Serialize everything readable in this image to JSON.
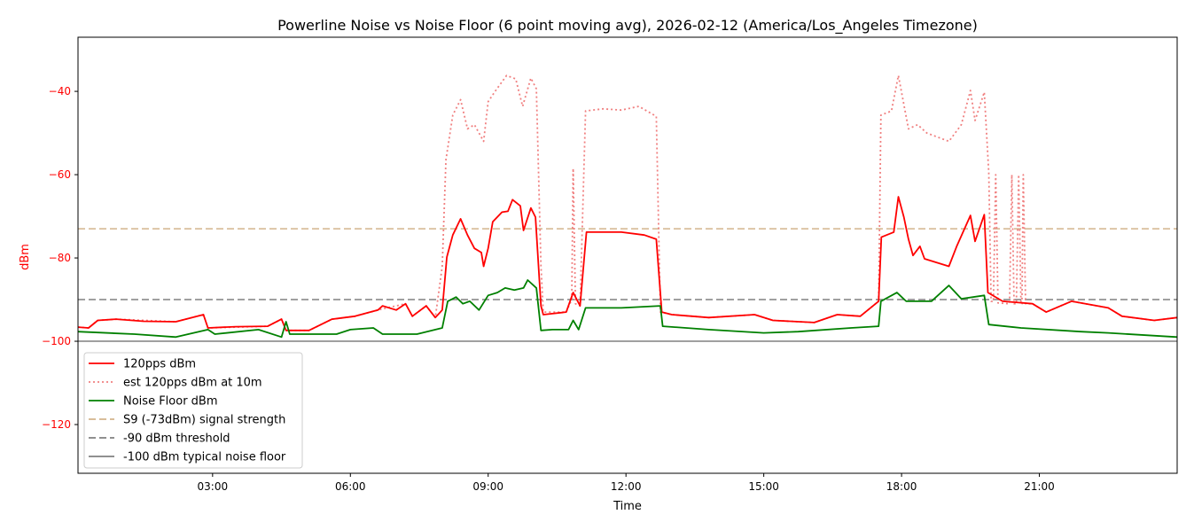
{
  "chart_data": {
    "type": "line",
    "title": "Powerline Noise vs Noise Floor (6 point moving avg), 2026-02-12 (America/Los_Angeles Timezone)",
    "xlabel": "Time",
    "ylabel": "dBm",
    "x_unit": "hours",
    "xlim": [
      0.07,
      24.0
    ],
    "ylim": [
      -131.7,
      -27
    ],
    "x_ticks": [
      {
        "value": 3,
        "label": "03:00"
      },
      {
        "value": 6,
        "label": "06:00"
      },
      {
        "value": 9,
        "label": "09:00"
      },
      {
        "value": 12,
        "label": "12:00"
      },
      {
        "value": 15,
        "label": "15:00"
      },
      {
        "value": 18,
        "label": "18:00"
      },
      {
        "value": 21,
        "label": "21:00"
      }
    ],
    "y_ticks": [
      {
        "value": -40,
        "label": "−40"
      },
      {
        "value": -60,
        "label": "−60"
      },
      {
        "value": -80,
        "label": "−80"
      },
      {
        "value": -100,
        "label": "−100"
      },
      {
        "value": -120,
        "label": "−120"
      }
    ],
    "grid": false,
    "legend_position": "lower-left",
    "colors": {
      "signal": "#ff0000",
      "est": "#f08080",
      "noise": "#008000",
      "s9": "#d2b48c",
      "threshold": "#808080",
      "floor": "#808080",
      "ylabel": "#ff0000"
    },
    "series": [
      {
        "name": "120pps dBm",
        "style": "solid",
        "color_key": "signal",
        "points": [
          [
            0.07,
            -96.6
          ],
          [
            0.3,
            -96.8
          ],
          [
            0.5,
            -95
          ],
          [
            0.9,
            -94.7
          ],
          [
            1.5,
            -95.2
          ],
          [
            2.2,
            -95.3
          ],
          [
            2.8,
            -93.6
          ],
          [
            2.9,
            -96.8
          ],
          [
            3.5,
            -96.5
          ],
          [
            4.2,
            -96.4
          ],
          [
            4.5,
            -94.7
          ],
          [
            4.6,
            -97.4
          ],
          [
            5.1,
            -97.4
          ],
          [
            5.6,
            -94.7
          ],
          [
            6.1,
            -94
          ],
          [
            6.6,
            -92.5
          ],
          [
            6.7,
            -91.5
          ],
          [
            7.0,
            -92.5
          ],
          [
            7.2,
            -91
          ],
          [
            7.35,
            -94
          ],
          [
            7.65,
            -91.5
          ],
          [
            7.85,
            -94.3
          ],
          [
            8.0,
            -92.5
          ],
          [
            8.1,
            -79.8
          ],
          [
            8.23,
            -74.5
          ],
          [
            8.4,
            -70.6
          ],
          [
            8.55,
            -74.5
          ],
          [
            8.7,
            -77.7
          ],
          [
            8.85,
            -78.7
          ],
          [
            8.9,
            -82
          ],
          [
            9.0,
            -77.7
          ],
          [
            9.1,
            -71.3
          ],
          [
            9.3,
            -69
          ],
          [
            9.43,
            -68.8
          ],
          [
            9.53,
            -66
          ],
          [
            9.7,
            -67.5
          ],
          [
            9.77,
            -73.4
          ],
          [
            9.93,
            -68
          ],
          [
            10.03,
            -70.2
          ],
          [
            10.15,
            -91.5
          ],
          [
            10.2,
            -93.6
          ],
          [
            10.7,
            -93
          ],
          [
            10.85,
            -88.3
          ],
          [
            11.0,
            -91.5
          ],
          [
            11.14,
            -73.8
          ],
          [
            11.9,
            -73.8
          ],
          [
            12.4,
            -74.5
          ],
          [
            12.66,
            -75.5
          ],
          [
            12.78,
            -93
          ],
          [
            13.0,
            -93.6
          ],
          [
            13.8,
            -94.3
          ],
          [
            14.8,
            -93.6
          ],
          [
            15.2,
            -95
          ],
          [
            16.1,
            -95.5
          ],
          [
            16.6,
            -93.6
          ],
          [
            17.1,
            -94
          ],
          [
            17.5,
            -90.4
          ],
          [
            17.56,
            -75
          ],
          [
            17.83,
            -73.8
          ],
          [
            17.93,
            -65.3
          ],
          [
            18.05,
            -70.2
          ],
          [
            18.15,
            -75.5
          ],
          [
            18.25,
            -79.4
          ],
          [
            18.4,
            -77.2
          ],
          [
            18.5,
            -80.2
          ],
          [
            19.03,
            -82
          ],
          [
            19.2,
            -77.2
          ],
          [
            19.5,
            -69.8
          ],
          [
            19.6,
            -76
          ],
          [
            19.8,
            -69.6
          ],
          [
            19.88,
            -88.3
          ],
          [
            20.2,
            -90.4
          ],
          [
            20.85,
            -91
          ],
          [
            21.15,
            -93
          ],
          [
            21.7,
            -90.4
          ],
          [
            22.5,
            -92
          ],
          [
            22.8,
            -94
          ],
          [
            23.5,
            -95
          ],
          [
            24.0,
            -94.3
          ]
        ]
      },
      {
        "name": "est 120pps dBm at 10m",
        "style": "dotted",
        "color_key": "est",
        "points": [
          [
            0.07,
            -96.6
          ],
          [
            0.3,
            -96.8
          ],
          [
            0.5,
            -95
          ],
          [
            0.9,
            -94.7
          ],
          [
            2.2,
            -95.3
          ],
          [
            2.8,
            -93.6
          ],
          [
            2.9,
            -96.8
          ],
          [
            4.2,
            -96.4
          ],
          [
            4.5,
            -94.7
          ],
          [
            4.6,
            -97.4
          ],
          [
            5.1,
            -97.4
          ],
          [
            5.6,
            -94.7
          ],
          [
            6.1,
            -94
          ],
          [
            6.6,
            -92.5
          ],
          [
            7.2,
            -91
          ],
          [
            7.35,
            -94
          ],
          [
            7.65,
            -91.5
          ],
          [
            7.85,
            -94.3
          ],
          [
            8.0,
            -82
          ],
          [
            8.08,
            -56.4
          ],
          [
            8.23,
            -45.7
          ],
          [
            8.4,
            -42
          ],
          [
            8.55,
            -49
          ],
          [
            8.7,
            -48
          ],
          [
            8.9,
            -52
          ],
          [
            9.0,
            -42.5
          ],
          [
            9.15,
            -40
          ],
          [
            9.4,
            -36.2
          ],
          [
            9.6,
            -37
          ],
          [
            9.75,
            -43.6
          ],
          [
            9.93,
            -36.8
          ],
          [
            10.05,
            -39.4
          ],
          [
            10.15,
            -82
          ],
          [
            10.2,
            -93
          ],
          [
            10.7,
            -93
          ],
          [
            10.82,
            -90
          ],
          [
            10.85,
            -58.5
          ],
          [
            10.9,
            -91
          ],
          [
            11.0,
            -91.5
          ],
          [
            11.12,
            -44.7
          ],
          [
            11.5,
            -44.2
          ],
          [
            11.9,
            -44.5
          ],
          [
            12.28,
            -43.6
          ],
          [
            12.66,
            -46
          ],
          [
            12.75,
            -93
          ],
          [
            13.0,
            -93.6
          ],
          [
            13.8,
            -94.3
          ],
          [
            14.8,
            -93.6
          ],
          [
            15.2,
            -95
          ],
          [
            16.1,
            -95.5
          ],
          [
            16.6,
            -93.6
          ],
          [
            17.1,
            -94
          ],
          [
            17.5,
            -90.4
          ],
          [
            17.55,
            -45.7
          ],
          [
            17.78,
            -44.7
          ],
          [
            17.93,
            -36.2
          ],
          [
            18.15,
            -49
          ],
          [
            18.35,
            -48
          ],
          [
            18.55,
            -50
          ],
          [
            19.03,
            -52
          ],
          [
            19.3,
            -48
          ],
          [
            19.5,
            -39.8
          ],
          [
            19.6,
            -47
          ],
          [
            19.8,
            -40.2
          ],
          [
            19.9,
            -59.6
          ],
          [
            19.95,
            -90.4
          ],
          [
            20.0,
            -90.5
          ],
          [
            20.05,
            -60
          ],
          [
            20.1,
            -90.8
          ],
          [
            20.35,
            -91
          ],
          [
            20.4,
            -60
          ],
          [
            20.45,
            -91
          ],
          [
            20.5,
            -91
          ],
          [
            20.55,
            -60
          ],
          [
            20.6,
            -91
          ],
          [
            20.62,
            -91
          ],
          [
            20.65,
            -60
          ],
          [
            20.7,
            -91
          ],
          [
            20.85,
            -91
          ],
          [
            21.15,
            -93
          ],
          [
            21.7,
            -90.4
          ],
          [
            22.5,
            -92
          ],
          [
            22.8,
            -94
          ],
          [
            23.5,
            -95
          ],
          [
            24.0,
            -94.3
          ]
        ]
      },
      {
        "name": "Noise Floor dBm",
        "style": "solid",
        "color_key": "noise",
        "points": [
          [
            0.07,
            -97.7
          ],
          [
            1.3,
            -98.3
          ],
          [
            2.2,
            -99
          ],
          [
            2.9,
            -97.2
          ],
          [
            3.05,
            -98.3
          ],
          [
            4.0,
            -97.2
          ],
          [
            4.5,
            -99
          ],
          [
            4.6,
            -95.3
          ],
          [
            4.68,
            -98.3
          ],
          [
            5.7,
            -98.3
          ],
          [
            6.0,
            -97.2
          ],
          [
            6.5,
            -96.8
          ],
          [
            6.7,
            -98.3
          ],
          [
            7.45,
            -98.3
          ],
          [
            8.0,
            -96.8
          ],
          [
            8.12,
            -90.4
          ],
          [
            8.3,
            -89.4
          ],
          [
            8.45,
            -91
          ],
          [
            8.6,
            -90.4
          ],
          [
            8.8,
            -92.5
          ],
          [
            9.0,
            -89
          ],
          [
            9.2,
            -88.3
          ],
          [
            9.37,
            -87.2
          ],
          [
            9.57,
            -87.7
          ],
          [
            9.77,
            -87.2
          ],
          [
            9.86,
            -85.3
          ],
          [
            10.05,
            -87.2
          ],
          [
            10.15,
            -97.4
          ],
          [
            10.4,
            -97.2
          ],
          [
            10.75,
            -97.2
          ],
          [
            10.85,
            -95
          ],
          [
            10.97,
            -97.2
          ],
          [
            11.12,
            -92
          ],
          [
            11.9,
            -92
          ],
          [
            12.75,
            -91.5
          ],
          [
            12.8,
            -96.4
          ],
          [
            13.8,
            -97.2
          ],
          [
            15.0,
            -98
          ],
          [
            15.75,
            -97.7
          ],
          [
            16.9,
            -96.8
          ],
          [
            17.5,
            -96.4
          ],
          [
            17.55,
            -90.4
          ],
          [
            17.9,
            -88.3
          ],
          [
            18.1,
            -90.4
          ],
          [
            18.65,
            -90.4
          ],
          [
            19.03,
            -86.6
          ],
          [
            19.3,
            -89.8
          ],
          [
            19.8,
            -89
          ],
          [
            19.9,
            -96
          ],
          [
            20.6,
            -96.8
          ],
          [
            21.9,
            -97.7
          ],
          [
            22.5,
            -98
          ],
          [
            24.0,
            -99
          ]
        ]
      }
    ],
    "reference_lines": [
      {
        "name": "S9 (-73dBm) signal strength",
        "value": -73,
        "style": "dashed",
        "color_key": "s9"
      },
      {
        "name": "-90 dBm threshold",
        "value": -90,
        "style": "dashed",
        "color_key": "threshold"
      },
      {
        "name": "-100 dBm typical noise floor",
        "value": -100,
        "style": "solid",
        "color_key": "floor"
      }
    ]
  }
}
